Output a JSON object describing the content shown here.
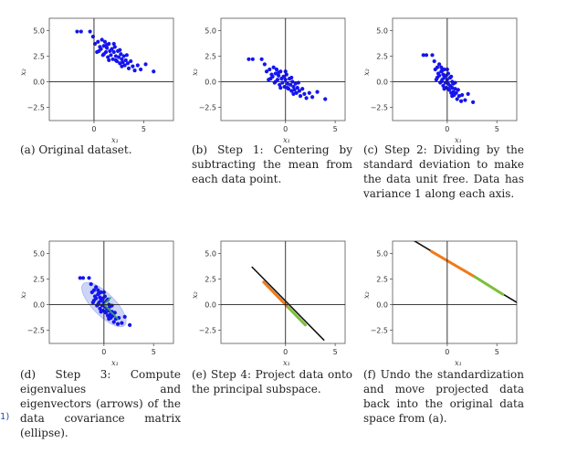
{
  "margin_note": "1)",
  "panels": [
    {
      "id": "a",
      "caption": "(a) Original dataset.",
      "xlabel": "x₁",
      "ylabel": "x₂",
      "xticks": [
        "0",
        "5"
      ],
      "yticks": [
        "5.0",
        "2.5",
        "0.0",
        "−2.5"
      ]
    },
    {
      "id": "b",
      "caption": "(b) Step 1: Centering by subtracting the mean from each data point.",
      "xlabel": "x₁",
      "ylabel": "x₂",
      "xticks": [
        "0",
        "5"
      ],
      "yticks": [
        "5.0",
        "2.5",
        "0.0",
        "−2.5"
      ]
    },
    {
      "id": "c",
      "caption": "(c) Step 2: Dividing by the standard deviation to make the data unit free. Data has variance 1 along each axis.",
      "xlabel": "x₁",
      "ylabel": "x₂",
      "xticks": [
        "0",
        "5"
      ],
      "yticks": [
        "5.0",
        "2.5",
        "0.0",
        "−2.5"
      ]
    },
    {
      "id": "d",
      "caption": "(d) Step 3: Compute eigenvalues and eigenvectors (arrows) of the data covariance matrix (ellipse).",
      "xlabel": "x₁",
      "ylabel": "x₂",
      "xticks": [
        "0",
        "5"
      ],
      "yticks": [
        "5.0",
        "2.5",
        "0.0",
        "−2.5"
      ]
    },
    {
      "id": "e",
      "caption": "(e) Step 4: Project data onto the principal subspace.",
      "xlabel": "x₁",
      "ylabel": "x₂",
      "xticks": [
        "0",
        "5"
      ],
      "yticks": [
        "5.0",
        "2.5",
        "0.0",
        "−2.5"
      ]
    },
    {
      "id": "f",
      "caption": "(f) Undo the standardization and move projected data back into the original data space from (a).",
      "xlabel": "x₁",
      "ylabel": "x₂",
      "xticks": [
        "0",
        "5"
      ],
      "yticks": [
        "5.0",
        "2.5",
        "0.0",
        "−2.5"
      ]
    }
  ],
  "chart_data": [
    {
      "type": "scatter",
      "panel": "a",
      "xlim": [
        -4.5,
        8
      ],
      "ylim": [
        -3.8,
        6.2
      ],
      "xticks": [
        0,
        5
      ],
      "yticks": [
        5.0,
        2.5,
        0.0,
        -2.5
      ],
      "xlabel": "x₁",
      "ylabel": "x₂",
      "colors": {
        "points": "#1515ee"
      },
      "points": [
        [
          -1.7,
          4.9
        ],
        [
          -1.3,
          4.9
        ],
        [
          -0.4,
          4.9
        ],
        [
          -0.1,
          4.4
        ],
        [
          0.1,
          3.7
        ],
        [
          0.3,
          2.9
        ],
        [
          0.4,
          3.9
        ],
        [
          0.6,
          3.4
        ],
        [
          0.7,
          3.2
        ],
        [
          0.8,
          4.1
        ],
        [
          0.9,
          2.6
        ],
        [
          1.0,
          3.5
        ],
        [
          1.1,
          3.9
        ],
        [
          1.2,
          2.9
        ],
        [
          1.3,
          3.3
        ],
        [
          1.4,
          2.4
        ],
        [
          1.5,
          3.7
        ],
        [
          1.6,
          3.0
        ],
        [
          1.7,
          2.6
        ],
        [
          1.8,
          3.2
        ],
        [
          1.9,
          2.2
        ],
        [
          2.0,
          2.9
        ],
        [
          2.1,
          3.4
        ],
        [
          2.2,
          2.5
        ],
        [
          2.3,
          2.0
        ],
        [
          2.4,
          3.0
        ],
        [
          2.5,
          2.4
        ],
        [
          2.6,
          1.8
        ],
        [
          2.7,
          2.7
        ],
        [
          2.8,
          2.2
        ],
        [
          2.9,
          1.9
        ],
        [
          3.0,
          2.5
        ],
        [
          3.1,
          1.6
        ],
        [
          3.2,
          2.1
        ],
        [
          3.4,
          1.8
        ],
        [
          3.5,
          1.3
        ],
        [
          3.7,
          2.0
        ],
        [
          3.9,
          1.5
        ],
        [
          4.1,
          1.1
        ],
        [
          4.4,
          1.6
        ],
        [
          1.0,
          2.7
        ],
        [
          1.5,
          2.1
        ],
        [
          2.0,
          3.7
        ],
        [
          2.6,
          3.1
        ],
        [
          3.3,
          2.6
        ],
        [
          0.5,
          3.0
        ],
        [
          1.3,
          3.6
        ],
        [
          2.2,
          2.1
        ],
        [
          2.8,
          1.5
        ],
        [
          6.0,
          1.0
        ],
        [
          5.2,
          1.7
        ],
        [
          4.7,
          1.2
        ]
      ]
    },
    {
      "type": "scatter",
      "panel": "b",
      "xlim": [
        -6.5,
        6
      ],
      "ylim": [
        -3.8,
        6.2
      ],
      "xticks": [
        0,
        5
      ],
      "yticks": [
        5.0,
        2.5,
        0.0,
        -2.5
      ],
      "xlabel": "x₁",
      "ylabel": "x₂",
      "colors": {
        "points": "#1515ee"
      },
      "points": [
        [
          -3.7,
          2.2
        ],
        [
          -3.3,
          2.2
        ],
        [
          -2.4,
          2.2
        ],
        [
          -2.1,
          1.7
        ],
        [
          -1.9,
          1.0
        ],
        [
          -1.7,
          0.2
        ],
        [
          -1.6,
          1.2
        ],
        [
          -1.4,
          0.7
        ],
        [
          -1.3,
          0.5
        ],
        [
          -1.2,
          1.4
        ],
        [
          -1.1,
          -0.1
        ],
        [
          -1.0,
          0.8
        ],
        [
          -0.9,
          1.2
        ],
        [
          -0.8,
          0.2
        ],
        [
          -0.7,
          0.6
        ],
        [
          -0.6,
          -0.3
        ],
        [
          -0.5,
          1.0
        ],
        [
          -0.4,
          0.3
        ],
        [
          -0.3,
          -0.1
        ],
        [
          -0.2,
          0.5
        ],
        [
          -0.1,
          -0.5
        ],
        [
          0.0,
          0.2
        ],
        [
          0.1,
          0.7
        ],
        [
          0.2,
          -0.2
        ],
        [
          0.3,
          -0.7
        ],
        [
          0.4,
          0.3
        ],
        [
          0.5,
          -0.3
        ],
        [
          0.6,
          -0.9
        ],
        [
          0.7,
          0.0
        ],
        [
          0.8,
          -0.5
        ],
        [
          0.9,
          -0.8
        ],
        [
          1.0,
          -0.2
        ],
        [
          1.1,
          -1.1
        ],
        [
          1.2,
          -0.6
        ],
        [
          1.4,
          -0.9
        ],
        [
          1.5,
          -1.4
        ],
        [
          1.7,
          -0.7
        ],
        [
          1.9,
          -1.2
        ],
        [
          2.1,
          -1.6
        ],
        [
          2.4,
          -1.1
        ],
        [
          -1.0,
          0.0
        ],
        [
          -0.5,
          -0.6
        ],
        [
          0.0,
          1.0
        ],
        [
          0.6,
          0.4
        ],
        [
          1.3,
          -0.1
        ],
        [
          -1.5,
          0.3
        ],
        [
          -0.7,
          0.9
        ],
        [
          0.2,
          -0.6
        ],
        [
          0.8,
          -1.2
        ],
        [
          4.0,
          -1.7
        ],
        [
          3.2,
          -1.0
        ],
        [
          2.7,
          -1.5
        ]
      ]
    },
    {
      "type": "scatter",
      "panel": "c",
      "xlim": [
        -5.5,
        7
      ],
      "ylim": [
        -3.8,
        6.2
      ],
      "xticks": [
        0,
        5
      ],
      "yticks": [
        5.0,
        2.5,
        0.0,
        -2.5
      ],
      "xlabel": "x₁",
      "ylabel": "x₂",
      "colors": {
        "points": "#1515ee"
      },
      "points": [
        [
          -2.4,
          2.6
        ],
        [
          -2.1,
          2.6
        ],
        [
          -1.5,
          2.6
        ],
        [
          -1.3,
          2.0
        ],
        [
          -1.2,
          1.2
        ],
        [
          -1.1,
          0.2
        ],
        [
          -1.0,
          1.4
        ],
        [
          -0.9,
          0.8
        ],
        [
          -0.8,
          0.6
        ],
        [
          -0.8,
          1.7
        ],
        [
          -0.7,
          -0.1
        ],
        [
          -0.6,
          1.0
        ],
        [
          -0.6,
          1.4
        ],
        [
          -0.5,
          0.2
        ],
        [
          -0.4,
          0.7
        ],
        [
          -0.4,
          -0.4
        ],
        [
          -0.3,
          1.2
        ],
        [
          -0.3,
          0.4
        ],
        [
          -0.2,
          -0.1
        ],
        [
          -0.1,
          0.6
        ],
        [
          -0.1,
          -0.6
        ],
        [
          0.0,
          0.2
        ],
        [
          0.1,
          0.8
        ],
        [
          0.1,
          -0.2
        ],
        [
          0.2,
          -0.8
        ],
        [
          0.3,
          0.4
        ],
        [
          0.3,
          -0.4
        ],
        [
          0.4,
          -1.1
        ],
        [
          0.5,
          0.0
        ],
        [
          0.5,
          -0.6
        ],
        [
          0.6,
          -1.0
        ],
        [
          0.6,
          -0.2
        ],
        [
          0.7,
          -1.3
        ],
        [
          0.8,
          -0.7
        ],
        [
          0.9,
          -1.1
        ],
        [
          1.0,
          -1.7
        ],
        [
          1.1,
          -0.8
        ],
        [
          1.2,
          -1.4
        ],
        [
          1.4,
          -1.9
        ],
        [
          1.5,
          -1.3
        ],
        [
          -0.6,
          0.0
        ],
        [
          -0.3,
          -0.7
        ],
        [
          0.0,
          1.2
        ],
        [
          0.4,
          0.5
        ],
        [
          0.8,
          -0.1
        ],
        [
          -1.0,
          0.4
        ],
        [
          -0.5,
          1.1
        ],
        [
          0.1,
          -0.7
        ],
        [
          0.5,
          -1.4
        ],
        [
          2.6,
          -2.0
        ],
        [
          2.1,
          -1.2
        ],
        [
          1.8,
          -1.8
        ]
      ]
    },
    {
      "type": "scatter",
      "panel": "d",
      "xlim": [
        -5.5,
        7
      ],
      "ylim": [
        -3.8,
        6.2
      ],
      "xticks": [
        0,
        5
      ],
      "yticks": [
        5.0,
        2.5,
        0.0,
        -2.5
      ],
      "xlabel": "x₁",
      "ylabel": "x₂",
      "colors": {
        "points": "#1515ee",
        "ellipse": "#8ea0ee",
        "eigenvectors": "#33aa55"
      },
      "ellipse": {
        "center": [
          0,
          0
        ],
        "semi_axes": [
          2.9,
          1.1
        ],
        "angle_deg": -45
      },
      "eigenvectors": [
        [
          1.45,
          -1.45
        ],
        [
          0.7,
          0.7
        ]
      ],
      "points": [
        [
          -2.4,
          2.6
        ],
        [
          -2.1,
          2.6
        ],
        [
          -1.5,
          2.6
        ],
        [
          -1.3,
          2.0
        ],
        [
          -1.2,
          1.2
        ],
        [
          -1.1,
          0.2
        ],
        [
          -1.0,
          1.4
        ],
        [
          -0.9,
          0.8
        ],
        [
          -0.8,
          0.6
        ],
        [
          -0.8,
          1.7
        ],
        [
          -0.7,
          -0.1
        ],
        [
          -0.6,
          1.0
        ],
        [
          -0.6,
          1.4
        ],
        [
          -0.5,
          0.2
        ],
        [
          -0.4,
          0.7
        ],
        [
          -0.4,
          -0.4
        ],
        [
          -0.3,
          1.2
        ],
        [
          -0.3,
          0.4
        ],
        [
          -0.2,
          -0.1
        ],
        [
          -0.1,
          0.6
        ],
        [
          -0.1,
          -0.6
        ],
        [
          0.0,
          0.2
        ],
        [
          0.1,
          0.8
        ],
        [
          0.1,
          -0.2
        ],
        [
          0.2,
          -0.8
        ],
        [
          0.3,
          0.4
        ],
        [
          0.3,
          -0.4
        ],
        [
          0.4,
          -1.1
        ],
        [
          0.5,
          0.0
        ],
        [
          0.5,
          -0.6
        ],
        [
          0.6,
          -1.0
        ],
        [
          0.6,
          -0.2
        ],
        [
          0.7,
          -1.3
        ],
        [
          0.8,
          -0.7
        ],
        [
          0.9,
          -1.1
        ],
        [
          1.0,
          -1.7
        ],
        [
          1.1,
          -0.8
        ],
        [
          1.2,
          -1.4
        ],
        [
          1.4,
          -1.9
        ],
        [
          1.5,
          -1.3
        ],
        [
          -0.6,
          0.0
        ],
        [
          -0.3,
          -0.7
        ],
        [
          0.0,
          1.2
        ],
        [
          0.4,
          0.5
        ],
        [
          0.8,
          -0.1
        ],
        [
          -1.0,
          0.4
        ],
        [
          -0.5,
          1.1
        ],
        [
          0.1,
          -0.7
        ],
        [
          0.5,
          -1.4
        ],
        [
          2.6,
          -2.0
        ],
        [
          2.1,
          -1.2
        ],
        [
          1.8,
          -1.8
        ]
      ]
    },
    {
      "type": "line",
      "panel": "e",
      "xlim": [
        -6.5,
        6
      ],
      "ylim": [
        -3.8,
        6.2
      ],
      "xticks": [
        0,
        5
      ],
      "yticks": [
        5.0,
        2.5,
        0.0,
        -2.5
      ],
      "xlabel": "x₁",
      "ylabel": "x₂",
      "colors": {
        "line": "#111111",
        "projected": "#f07a1a",
        "projected_alt": "#7cbf3a"
      },
      "line": [
        [
          -3.4,
          3.7
        ],
        [
          3.9,
          -3.5
        ]
      ],
      "projected_segments": [
        {
          "from": [
            -2.2,
            2.2
          ],
          "to": [
            0.3,
            -0.3
          ],
          "color": "projected"
        },
        {
          "from": [
            0.3,
            -0.3
          ],
          "to": [
            2.0,
            -2.0
          ],
          "color": "projected_alt"
        }
      ]
    },
    {
      "type": "line",
      "panel": "f",
      "xlim": [
        -5.5,
        7
      ],
      "ylim": [
        -3.8,
        6.2
      ],
      "xticks": [
        0,
        5
      ],
      "yticks": [
        5.0,
        2.5,
        0.0,
        -2.5
      ],
      "xlabel": "x₁",
      "ylabel": "x₂",
      "colors": {
        "line": "#111111",
        "projected": "#f07a1a",
        "projected_alt": "#7cbf3a"
      },
      "line": [
        [
          -4.3,
          6.8
        ],
        [
          7.2,
          0.1
        ]
      ],
      "projected_segments": [
        {
          "from": [
            -1.6,
            5.2
          ],
          "to": [
            2.8,
            2.7
          ],
          "color": "projected"
        },
        {
          "from": [
            2.8,
            2.7
          ],
          "to": [
            5.6,
            1.0
          ],
          "color": "projected_alt"
        }
      ]
    }
  ]
}
